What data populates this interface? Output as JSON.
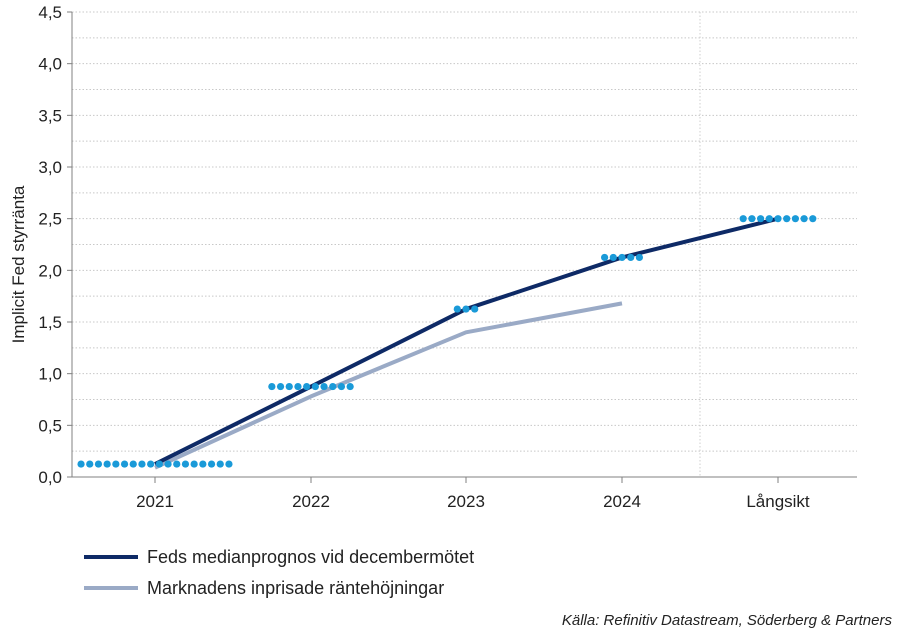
{
  "chart_data": {
    "type": "line",
    "ylabel": "Implicit Fed styrränta",
    "ylim": [
      0,
      4.5
    ],
    "yticks": [
      "0,0",
      "0,5",
      "1,0",
      "1,5",
      "2,0",
      "2,5",
      "3,0",
      "3,5",
      "4,0",
      "4,5"
    ],
    "categories": [
      "2021",
      "2022",
      "2023",
      "2024",
      "Långsikt"
    ],
    "grid": true,
    "series": [
      {
        "name": "Feds medianprognos vid decembermötet",
        "color": "#0e2a66",
        "values": [
          0.125,
          0.875,
          1.625,
          2.125,
          2.5
        ]
      },
      {
        "name": "Marknadens inprisade räntehöjningar",
        "color": "#9aaac6",
        "values": [
          0.09,
          0.78,
          1.4,
          1.68,
          null
        ]
      }
    ],
    "dots": {
      "color": "#1a9ad8",
      "groups": [
        {
          "category": "2021",
          "value": 0.125,
          "count": 18
        },
        {
          "category": "2022",
          "value": 0.875,
          "count": 10
        },
        {
          "category": "2023",
          "value": 1.625,
          "count": 3
        },
        {
          "category": "2024",
          "value": 2.125,
          "count": 5
        },
        {
          "category": "Långsikt",
          "value": 2.5,
          "count": 9
        }
      ]
    },
    "source": "Källa: Refinitiv Datastream, Söderberg & Partners"
  }
}
